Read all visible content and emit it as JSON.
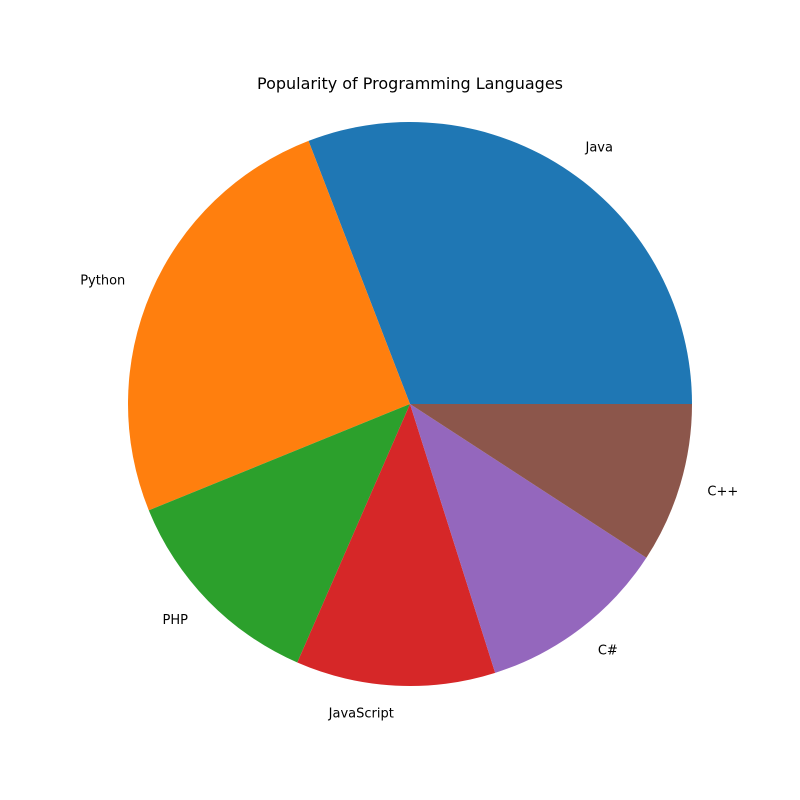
{
  "chart_data": {
    "type": "pie",
    "title": "Popularity of Programming Languages",
    "categories": [
      "Java",
      "Python",
      "PHP",
      "JavaScript",
      "C#",
      "C++"
    ],
    "values": [
      31.6,
      25.9,
      12.6,
      11.7,
      11.2,
      9.4
    ],
    "colors": [
      "#1f77b4",
      "#ff7f0e",
      "#2ca02c",
      "#d62728",
      "#9467bd",
      "#8c564b"
    ],
    "start_angle_deg": 0,
    "direction": "counterclockwise",
    "legend": "none"
  }
}
